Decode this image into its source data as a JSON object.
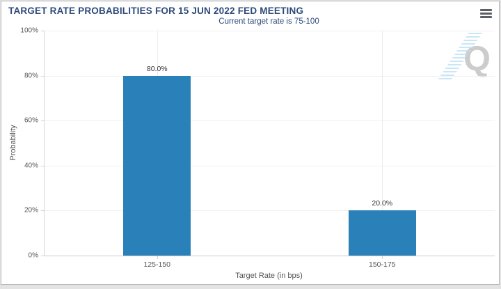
{
  "window": {
    "background": "#ffffff",
    "border_color": "#b9b9b9",
    "page_background": "#e3e3e3"
  },
  "toolbar": {
    "menu_icon": "hamburger-menu-icon"
  },
  "chart_data": {
    "type": "bar",
    "title": "TARGET RATE PROBABILITIES FOR 15 JUN 2022 FED MEETING",
    "subtitle": "Current target rate is 75-100",
    "categories": [
      "125-150",
      "150-175"
    ],
    "values": [
      80.0,
      20.0
    ],
    "value_labels": [
      "80.0%",
      "20.0%"
    ],
    "xlabel": "Target Rate (in bps)",
    "ylabel": "Probability",
    "ylim": [
      0,
      100
    ],
    "ytick_labels": [
      "0%",
      "20%",
      "40%",
      "60%",
      "80%",
      "100%"
    ],
    "grid": true,
    "legend": "none",
    "bar_color": "#2a80b9"
  },
  "watermark": {
    "letter": "Q",
    "letter_color": "#cccccc",
    "hatch_color": "#bfe3f4"
  },
  "colors": {
    "title_text": "#2e4a7c",
    "axis_text": "#555555",
    "value_label_text": "#333333",
    "gridline": "#f0f0f0"
  }
}
